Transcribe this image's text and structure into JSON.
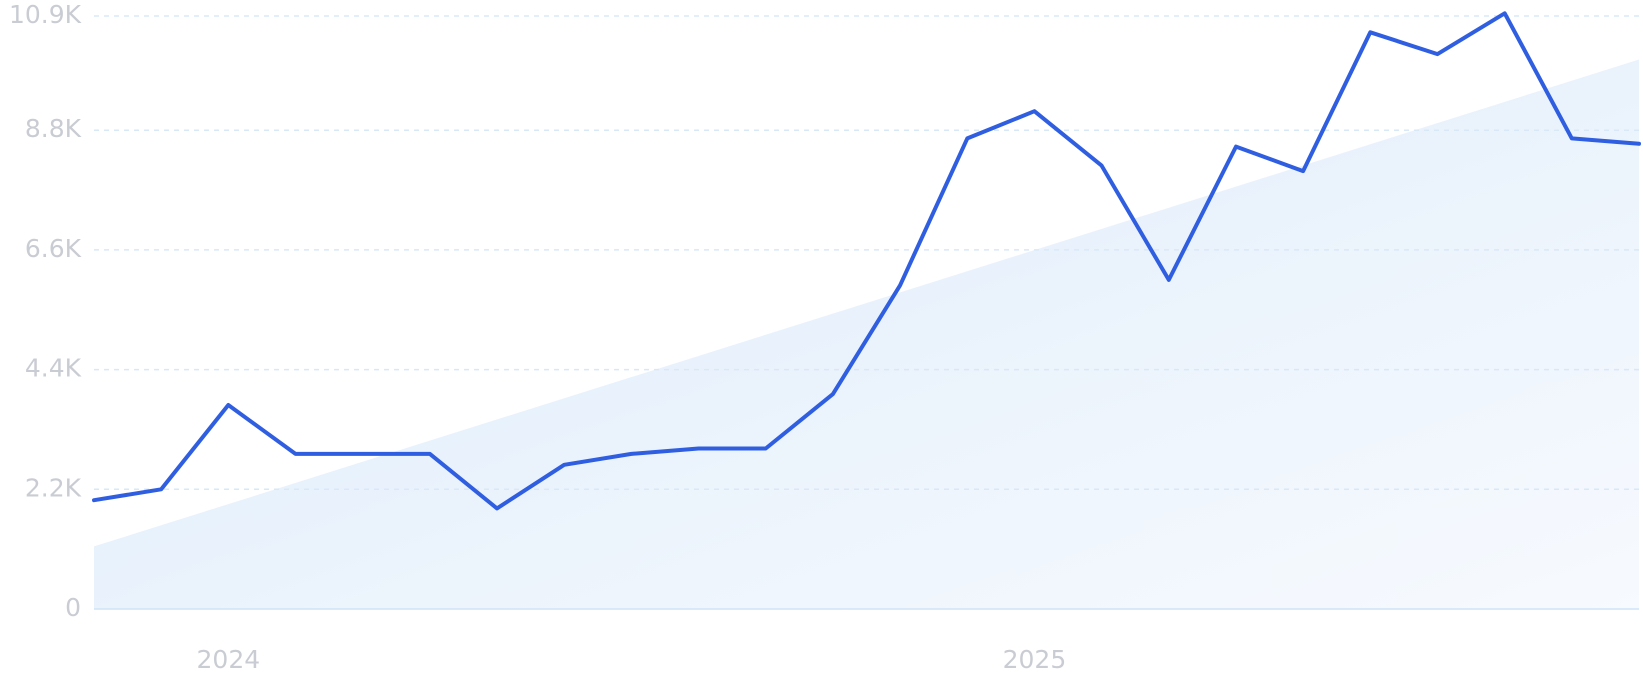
{
  "chart_data": {
    "type": "line",
    "title": "",
    "xlabel": "",
    "ylabel": "",
    "x_tick_labels": [
      "2024",
      "2025"
    ],
    "y_tick_labels": [
      "0",
      "2.2K",
      "4.4K",
      "6.6K",
      "8.8K",
      "10.9K"
    ],
    "y_tick_values": [
      0,
      2200,
      4400,
      6600,
      8800,
      10900
    ],
    "ylim": [
      0,
      10900
    ],
    "grid": true,
    "legend": "none",
    "colors": {
      "line": "#2f5ee0",
      "trend_fill_start": "#dcebfa",
      "trend_fill_end": "#f7fafe",
      "grid": "#d9e8f7",
      "tick_text": "#c9ccd3"
    },
    "series": [
      {
        "values": [
          2000,
          2200,
          3750,
          2850,
          2850,
          2850,
          1850,
          2650,
          2850,
          2950,
          2950,
          3950,
          5950,
          8650,
          9150,
          8150,
          6050,
          8500,
          8050,
          10600,
          10200,
          10950,
          8650,
          8550
        ]
      }
    ],
    "trend": {
      "type": "area",
      "start": 1150,
      "end": 10100
    }
  }
}
